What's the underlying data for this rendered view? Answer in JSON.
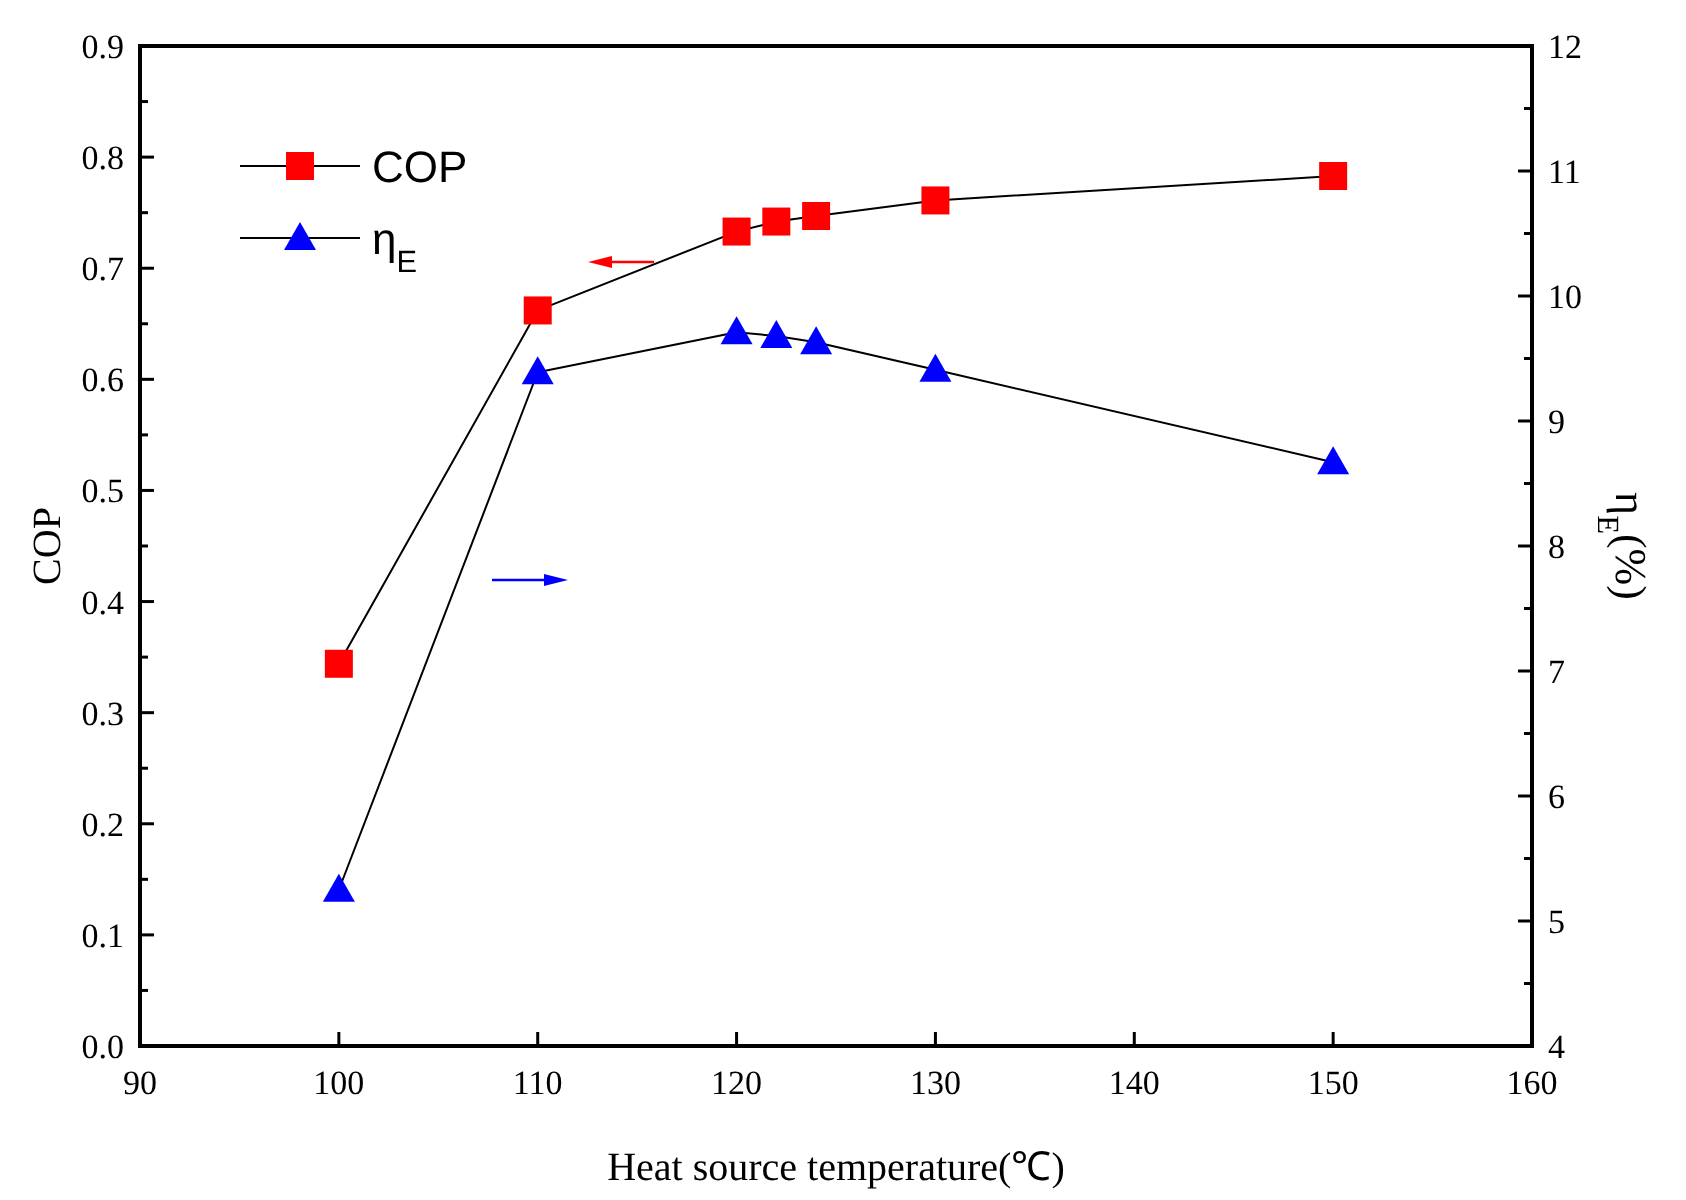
{
  "chart_data": {
    "type": "line",
    "xlabel": "Heat source temperature(℃)",
    "ylabel": "COP",
    "y2label": "η$_{E}$(%)",
    "x": [
      100,
      110,
      120,
      122,
      124,
      130,
      150
    ],
    "series": [
      {
        "name": "COP",
        "color": "#ff0000",
        "marker": "square",
        "values": [
          0.344,
          0.662,
          0.733,
          0.742,
          0.747,
          0.761,
          0.783
        ]
      },
      {
        "name": "η$_{E}$",
        "color": "#0000ff",
        "marker": "triangle",
        "axis": "y2",
        "values": [
          5.25,
          9.39,
          9.71,
          9.68,
          9.63,
          9.41,
          8.67
        ]
      }
    ],
    "xlim": [
      90,
      160
    ],
    "xticks": [
      90,
      100,
      110,
      120,
      130,
      140,
      150,
      160
    ],
    "ylim": [
      0,
      0.9
    ],
    "yticks": [
      {
        "value": 0,
        "label": "0.0"
      },
      {
        "value": 0.05,
        "label": null
      },
      0.1,
      {
        "value": 0.15,
        "label": null
      },
      0.2,
      {
        "value": 0.25,
        "label": null
      },
      0.3,
      {
        "value": 0.35,
        "label": null
      },
      0.4,
      {
        "value": 0.45,
        "label": null
      },
      0.5,
      {
        "value": 0.55,
        "label": null
      },
      0.6,
      {
        "value": 0.65,
        "label": null
      },
      0.7,
      {
        "value": 0.75,
        "label": null
      },
      0.8,
      {
        "value": 0.85,
        "label": null
      },
      0.9
    ],
    "y2lim": [
      4,
      12
    ],
    "y2ticks": [
      4,
      {
        "value": 4.5,
        "label": null
      },
      5,
      {
        "value": 5.5,
        "label": null
      },
      6,
      {
        "value": 6.5,
        "label": null
      },
      7,
      {
        "value": 7.5,
        "label": null
      },
      8,
      {
        "value": 8.5,
        "label": null
      },
      9,
      {
        "value": 9.5,
        "label": null
      },
      10,
      {
        "value": 10.5,
        "label": null
      },
      11,
      {
        "value": 11.5,
        "label": null
      },
      12
    ],
    "legend": "top left",
    "grid": false,
    "line_style": "solid"
  }
}
